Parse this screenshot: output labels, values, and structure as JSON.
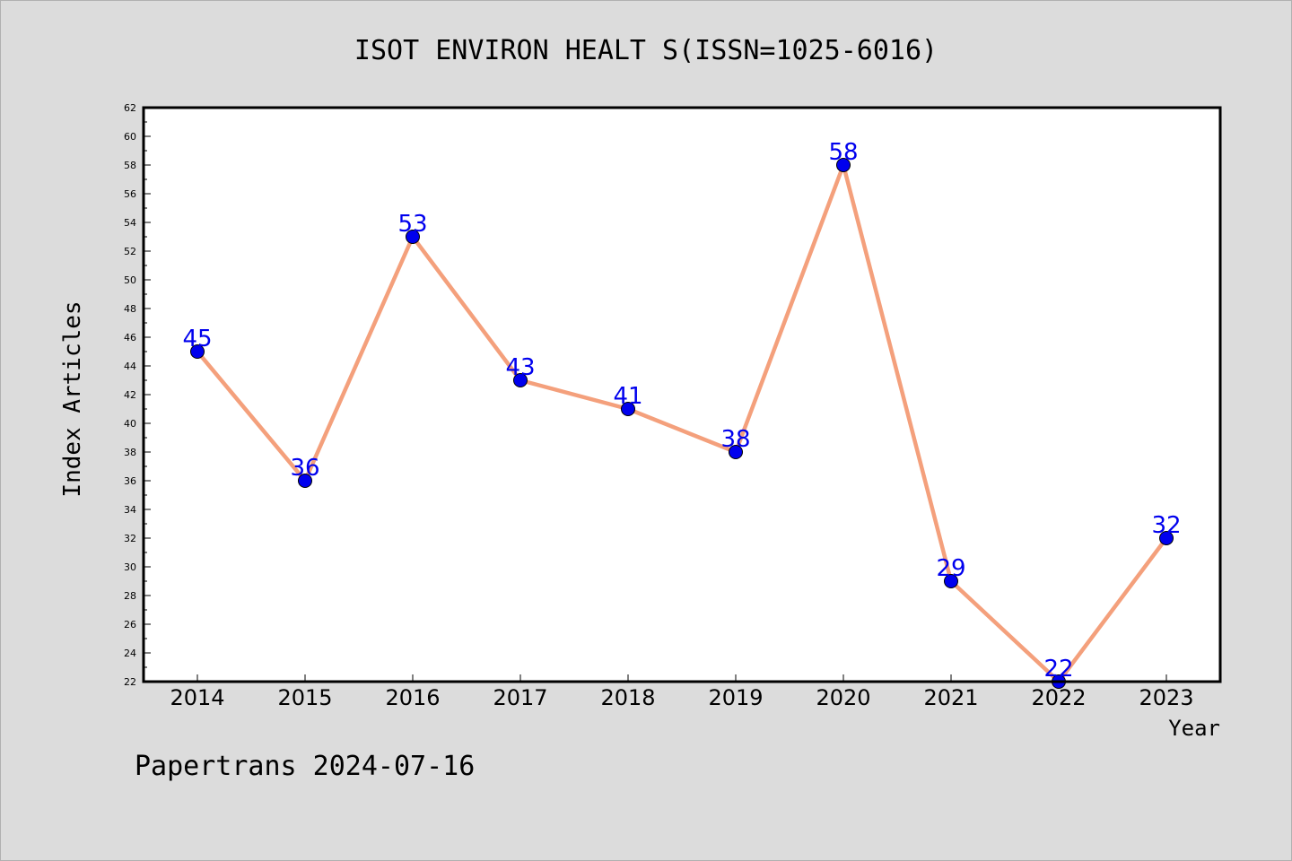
{
  "chart_data": {
    "type": "line",
    "title": "ISOT ENVIRON HEALT S(ISSN=1025-6016)",
    "xlabel": "Year",
    "ylabel": "Index Articles",
    "categories": [
      "2014",
      "2015",
      "2016",
      "2017",
      "2018",
      "2019",
      "2020",
      "2021",
      "2022",
      "2023"
    ],
    "values": [
      45,
      36,
      53,
      43,
      41,
      38,
      58,
      29,
      22,
      32
    ],
    "ylim": [
      22,
      62
    ],
    "ytick_step": 2,
    "grid": false,
    "line_color": "#f4a07c",
    "marker_color": "#0000ee",
    "label_color": "#0000ee",
    "background_color": "#dcdcdc",
    "plot_background_color": "#ffffff"
  },
  "footer": {
    "watermark": "Papertrans 2024-07-16"
  }
}
